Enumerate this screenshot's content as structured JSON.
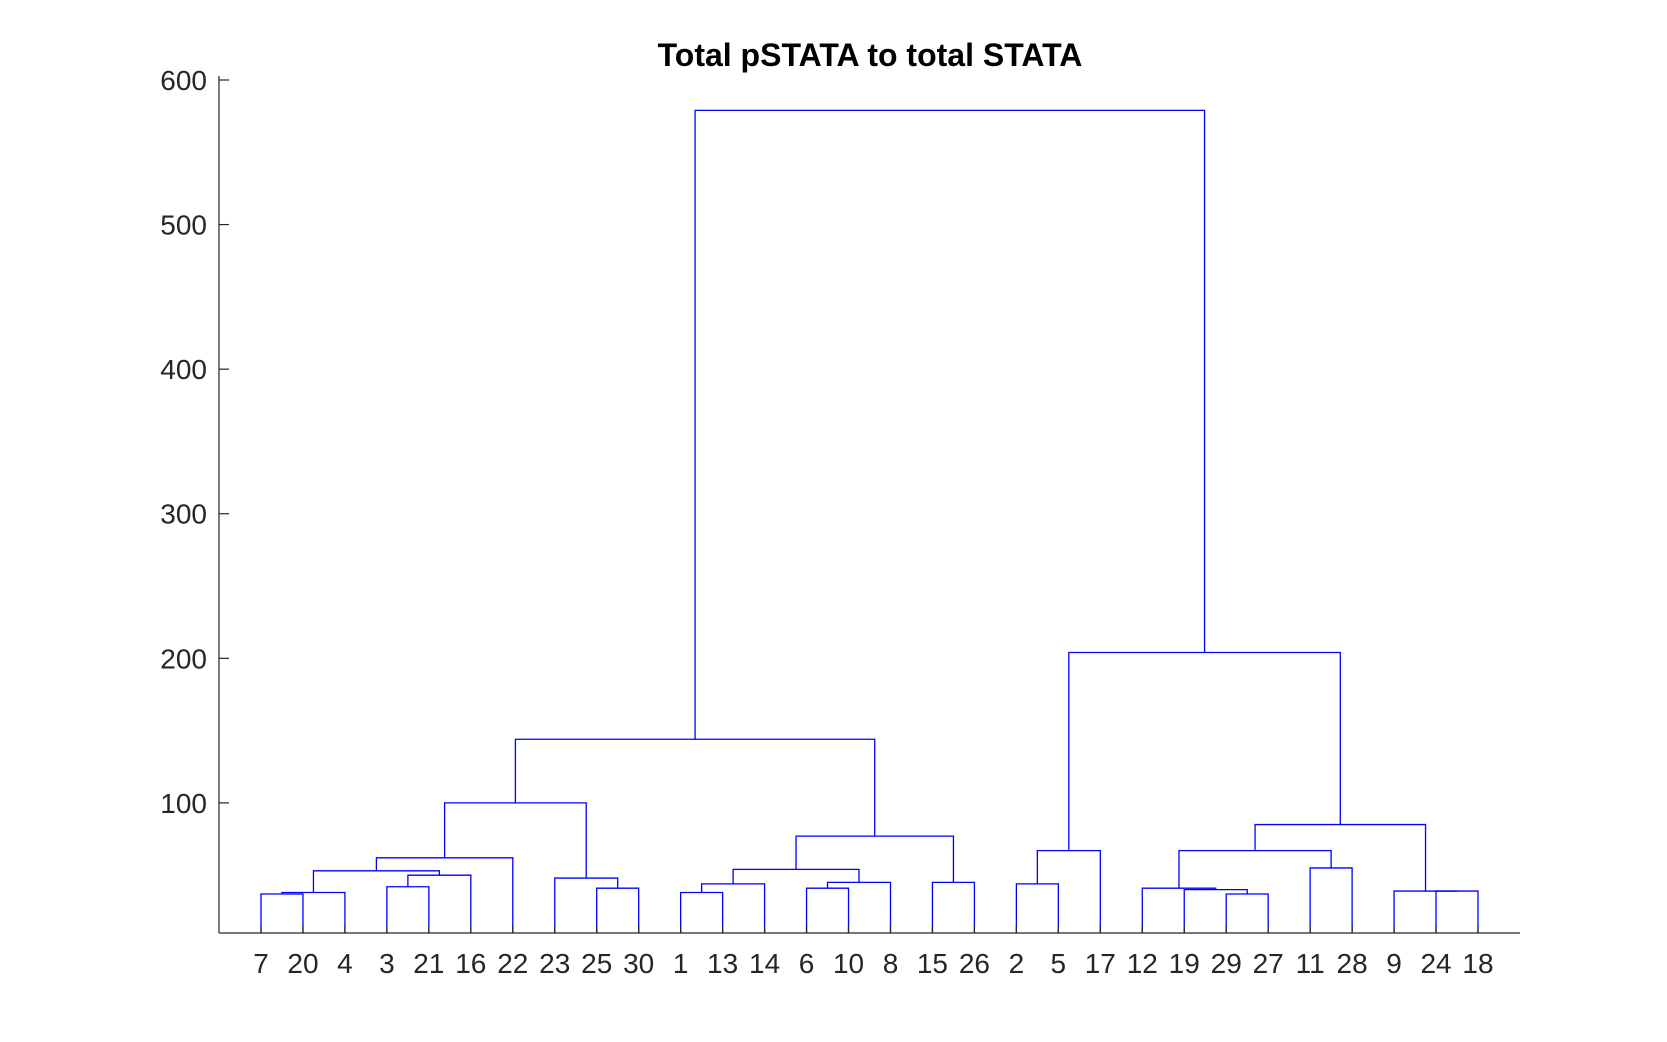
{
  "chart_data": {
    "type": "dendrogram",
    "title": "Total pSTATA to total STATA",
    "xlabel": "",
    "ylabel": "",
    "ylim": [
      10,
      600
    ],
    "yticks": [
      100,
      200,
      300,
      400,
      500,
      600
    ],
    "line_color": "#0000ff",
    "leaf_order": [
      "7",
      "20",
      "4",
      "3",
      "21",
      "16",
      "22",
      "23",
      "25",
      "30",
      "1",
      "13",
      "14",
      "6",
      "10",
      "8",
      "15",
      "26",
      "2",
      "5",
      "17",
      "12",
      "19",
      "29",
      "27",
      "11",
      "28",
      "9",
      "24",
      "18"
    ],
    "merges": [
      {
        "left": "7",
        "right": "20",
        "height": 37
      },
      {
        "left": "7,20",
        "right": "4",
        "height": 38
      },
      {
        "left": "3",
        "right": "21",
        "height": 42
      },
      {
        "left": "3,21",
        "right": "16",
        "height": 50
      },
      {
        "left": "7,20,4",
        "right": "3,21,16",
        "height": 53
      },
      {
        "left": "7,20,4,3,21,16",
        "right": "22",
        "height": 62
      },
      {
        "left": "25",
        "right": "30",
        "height": 41
      },
      {
        "left": "23",
        "right": "25,30",
        "height": 48
      },
      {
        "left": "7,20,4,3,21,16,22",
        "right": "23,25,30",
        "height": 100
      },
      {
        "left": "1",
        "right": "13",
        "height": 38
      },
      {
        "left": "1,13",
        "right": "14",
        "height": 44
      },
      {
        "left": "6",
        "right": "10",
        "height": 41
      },
      {
        "left": "6,10",
        "right": "8",
        "height": 45
      },
      {
        "left": "1,13,14",
        "right": "6,10,8",
        "height": 54
      },
      {
        "left": "15",
        "right": "26",
        "height": 45
      },
      {
        "left": "1,13,14,6,10,8",
        "right": "15,26",
        "height": 77
      },
      {
        "left": "left-a",
        "right": "left-b",
        "height": 144
      },
      {
        "left": "2",
        "right": "5",
        "height": 44
      },
      {
        "left": "2,5",
        "right": "17",
        "height": 67
      },
      {
        "left": "29",
        "right": "27",
        "height": 37
      },
      {
        "left": "19",
        "right": "29,27",
        "height": 40
      },
      {
        "left": "12",
        "right": "19,29,27",
        "height": 41
      },
      {
        "left": "11",
        "right": "28",
        "height": 55
      },
      {
        "left": "12,19,29,27",
        "right": "11,28",
        "height": 67
      },
      {
        "left": "24",
        "right": "18",
        "height": 39
      },
      {
        "left": "9",
        "right": "24,18",
        "height": 39
      },
      {
        "left": "12,19,29,27,11,28",
        "right": "9,24,18",
        "height": 85
      },
      {
        "left": "2,5,17",
        "right": "12-group",
        "height": 204
      },
      {
        "left": "left-cluster",
        "right": "right-cluster",
        "height": 579
      }
    ]
  }
}
